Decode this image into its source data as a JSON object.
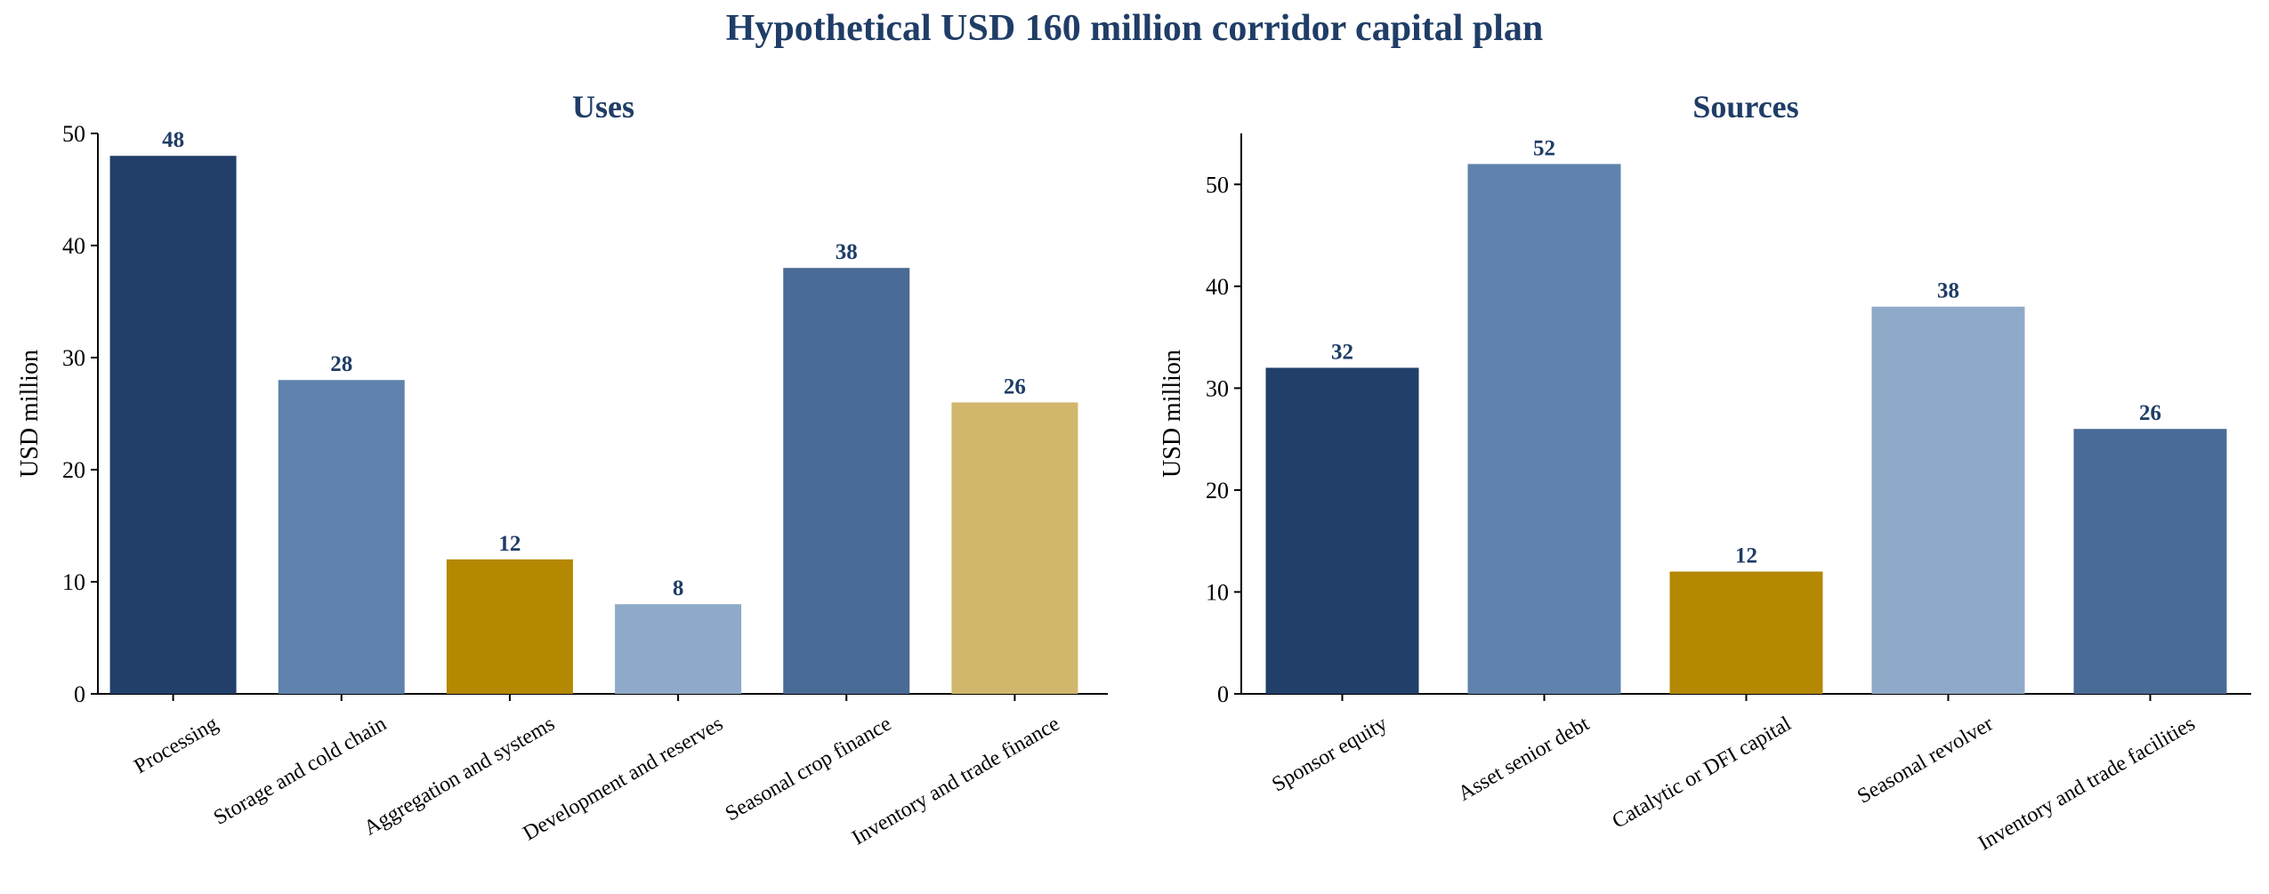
{
  "title": "Hypothetical USD 160 million corridor capital plan",
  "chart_data": [
    {
      "type": "bar",
      "title": "Uses",
      "ylabel": "USD million",
      "ylim": [
        0,
        50
      ],
      "yticks": [
        0,
        10,
        20,
        30,
        40,
        50
      ],
      "grid": false,
      "categories": [
        "Processing",
        "Storage and cold chain",
        "Aggregation and systems",
        "Development and reserves",
        "Seasonal crop finance",
        "Inventory and trade finance"
      ],
      "values": [
        48,
        28,
        12,
        8,
        38,
        26
      ],
      "colors": [
        "#213f68",
        "#5f83ad",
        "#b48800",
        "#8fa9c8",
        "#4a6b95",
        "#d1b76b"
      ]
    },
    {
      "type": "bar",
      "title": "Sources",
      "ylabel": "USD million",
      "ylim": [
        0,
        55
      ],
      "yticks": [
        0,
        10,
        20,
        30,
        40,
        50
      ],
      "grid": false,
      "categories": [
        "Sponsor equity",
        "Asset senior debt",
        "Catalytic or DFI capital",
        "Seasonal revolver",
        "Inventory and trade facilities"
      ],
      "values": [
        32,
        52,
        12,
        38,
        26
      ],
      "colors": [
        "#213f68",
        "#5f83ad",
        "#b48800",
        "#8fa9c8",
        "#4a6b95"
      ]
    }
  ]
}
